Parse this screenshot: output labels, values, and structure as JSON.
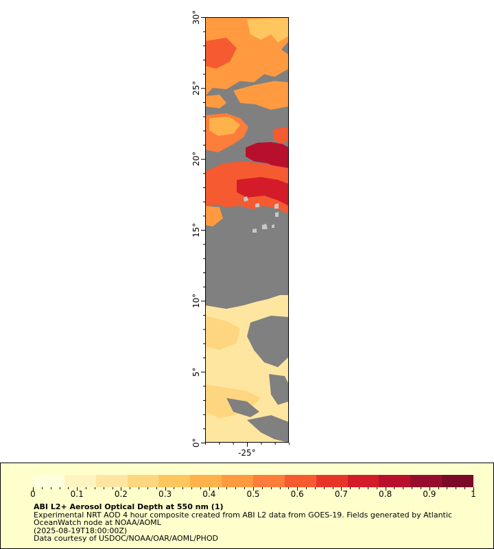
{
  "map": {
    "lat_ticks": [
      {
        "value": 0,
        "label": "0°"
      },
      {
        "value": 5,
        "label": "5°"
      },
      {
        "value": 10,
        "label": "10°"
      },
      {
        "value": 15,
        "label": "15°"
      },
      {
        "value": 20,
        "label": "20°"
      },
      {
        "value": 25,
        "label": "25°"
      },
      {
        "value": 30,
        "label": "30°"
      }
    ],
    "lon_ticks": [
      {
        "value": -25,
        "label": "-25°"
      }
    ],
    "lat_range": [
      0,
      30
    ],
    "lon_range": [
      -28,
      -22
    ],
    "no_data_color": "#808080",
    "land_color": "#c8c8c8"
  },
  "legend": {
    "colorbar_ticks": [
      "0",
      "0.1",
      "0.2",
      "0.3",
      "0.4",
      "0.5",
      "0.6",
      "0.7",
      "0.8",
      "0.9",
      "1"
    ],
    "colorbar_range": [
      0,
      1
    ],
    "colors": [
      "#ffffe0",
      "#fff3c0",
      "#ffe6a0",
      "#ffd680",
      "#ffc660",
      "#ffb24a",
      "#ff9a40",
      "#fd7d3a",
      "#f55a30",
      "#e8352a",
      "#d41b2a",
      "#b8102c",
      "#960c2c",
      "#7a0a28"
    ],
    "title": "ABI L2+ Aerosol Optical Depth at 550 nm (1)",
    "line1": "Experimental NRT AOD 4 hour composite created from ABI L2 data from GOES-19. Fields generated by Atlantic",
    "line2": "OceanWatch node at NOAA/AOML",
    "line3": "(2025-08-19T18:00:00Z)",
    "line4": "Data courtesy of USDOC/NOAA/OAR/AOML/PHOD"
  }
}
